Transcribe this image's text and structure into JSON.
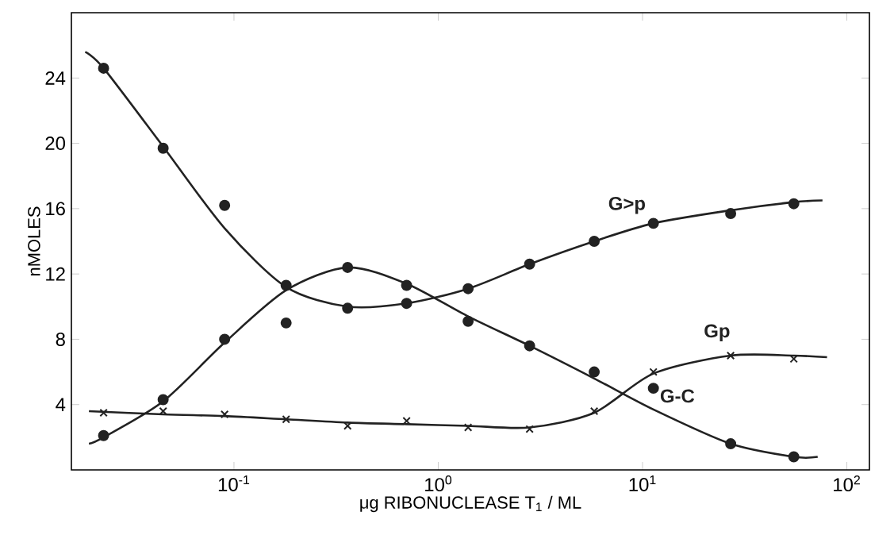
{
  "chart_data": {
    "type": "scatter",
    "xlabel": "μg RIBONUCLEASE T$_{1}$ / ML",
    "ylabel": "nMOLES",
    "log": "x",
    "xlim": [
      0.016,
      129
    ],
    "ylim": [
      0,
      28
    ],
    "xticks": [
      {
        "value": 0.1,
        "label": "10$^{-1}$"
      },
      {
        "value": 1,
        "label": "10$^{0}$"
      },
      {
        "value": 10,
        "label": "10$^{1}$"
      },
      {
        "value": 100,
        "label": "10$^{2}$"
      }
    ],
    "yticks": [
      4,
      8,
      12,
      16,
      20,
      24
    ],
    "grid": false,
    "series": [
      {
        "marker": "circle",
        "color": "#222222",
        "x": [
          0.023,
          0.045,
          0.09,
          0.18,
          0.36,
          0.7,
          1.4,
          2.8,
          5.8,
          11.3,
          27,
          55
        ],
        "values": [
          24.6,
          19.7,
          16.2,
          11.3,
          9.9,
          10.2,
          11.1,
          12.6,
          14.0,
          15.1,
          15.7,
          16.3
        ]
      },
      {
        "marker": "circle",
        "color": "#222222",
        "x": [
          0.023,
          0.045,
          0.09,
          0.18,
          0.36,
          0.7,
          1.4,
          2.8,
          5.8,
          11.3,
          27,
          55
        ],
        "values": [
          2.1,
          4.3,
          8.0,
          9.0,
          12.4,
          11.3,
          9.1,
          7.6,
          6.0,
          5.0,
          1.6,
          0.8
        ]
      },
      {
        "marker": "cross",
        "color": "#222222",
        "x": [
          0.023,
          0.045,
          0.09,
          0.18,
          0.36,
          0.7,
          1.4,
          2.8,
          5.8,
          11.3,
          27,
          55
        ],
        "values": [
          3.5,
          3.6,
          3.4,
          3.1,
          2.7,
          3.0,
          2.6,
          2.5,
          3.6,
          6.0,
          7.0,
          6.8
        ]
      },
      {
        "type": "line",
        "name": "G>p",
        "marker": "none",
        "color": "#222222",
        "x": [
          0.0187,
          0.023,
          0.045,
          0.09,
          0.18,
          0.36,
          0.7,
          1.4,
          2.8,
          5.8,
          11.3,
          27,
          55,
          76
        ],
        "values": [
          25.6,
          24.6,
          19.8,
          14.8,
          11.2,
          10.0,
          10.2,
          11.1,
          12.6,
          14.0,
          15.1,
          15.9,
          16.4,
          16.5
        ]
      },
      {
        "type": "line",
        "name": "G-C",
        "marker": "none",
        "color": "#222222",
        "x": [
          0.0195,
          0.023,
          0.045,
          0.09,
          0.18,
          0.36,
          0.7,
          1.4,
          2.8,
          5.8,
          11.3,
          27,
          55,
          72
        ],
        "values": [
          1.6,
          2.0,
          4.2,
          7.8,
          11.0,
          12.4,
          11.4,
          9.4,
          7.6,
          5.6,
          3.7,
          1.6,
          0.8,
          0.8
        ]
      },
      {
        "type": "line",
        "name": "Gp",
        "marker": "none",
        "color": "#222222",
        "x": [
          0.0195,
          0.045,
          0.09,
          0.18,
          0.36,
          0.7,
          1.4,
          2.8,
          5.8,
          11.3,
          27,
          55,
          80
        ],
        "values": [
          3.6,
          3.4,
          3.3,
          3.1,
          2.9,
          2.8,
          2.7,
          2.6,
          3.5,
          5.9,
          7.0,
          7.0,
          6.9
        ]
      }
    ]
  }
}
